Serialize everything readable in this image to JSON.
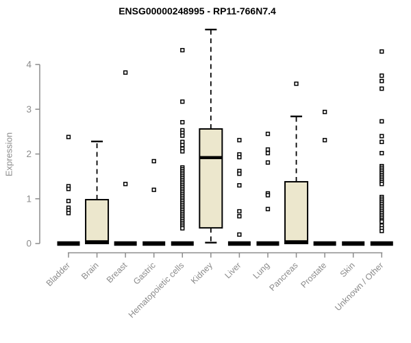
{
  "chart_data": {
    "type": "boxplot",
    "title": "ENSG00000248995 - RP11-766N7.4",
    "ylabel": "Expression",
    "xlabel": "",
    "yticks": [
      0,
      1,
      2,
      3,
      4
    ],
    "ylim": [
      0,
      4.9
    ],
    "grid": false,
    "legend": "none",
    "categories": [
      "Bladder",
      "Brain",
      "Breast",
      "Gastric",
      "Hematopoietic cells",
      "Kidney",
      "Liver",
      "Lung",
      "Pancreas",
      "Prostate",
      "Skin",
      "Unknown / Other"
    ],
    "boxes": [
      {
        "name": "Bladder",
        "low": 0,
        "q1": 0,
        "median": 0,
        "q3": 0,
        "high": 0,
        "outliers": [
          2.38,
          1.28,
          1.22,
          0.95,
          0.8,
          0.74,
          0.68
        ]
      },
      {
        "name": "Brain",
        "low": 0,
        "q1": 0,
        "median": 0.02,
        "q3": 0.98,
        "high": 2.28,
        "outliers": []
      },
      {
        "name": "Breast",
        "low": 0,
        "q1": 0,
        "median": 0,
        "q3": 0,
        "high": 0,
        "outliers": [
          3.82,
          1.33
        ]
      },
      {
        "name": "Gastric",
        "low": 0,
        "q1": 0,
        "median": 0,
        "q3": 0,
        "high": 0,
        "outliers": [
          1.84,
          1.2
        ]
      },
      {
        "name": "Hematopoietic cells",
        "low": 0,
        "q1": 0,
        "median": 0,
        "q3": 0,
        "high": 0,
        "outliers": [
          4.32,
          3.17,
          2.71,
          2.53,
          2.47,
          2.41,
          2.27,
          2.2,
          2.12,
          2.06,
          1.7,
          1.66,
          1.62,
          1.58,
          1.54,
          1.5,
          1.46,
          1.42,
          1.38,
          1.34,
          1.3,
          1.26,
          1.22,
          1.18,
          1.14,
          1.1,
          1.06,
          1.02,
          0.98,
          0.94,
          0.9,
          0.86,
          0.82,
          0.78,
          0.74,
          0.7,
          0.66,
          0.62,
          0.58,
          0.54,
          0.5,
          0.46,
          0.42,
          0.38,
          0.34
        ]
      },
      {
        "name": "Kidney",
        "low": 0.02,
        "q1": 0.35,
        "median": 1.92,
        "q3": 2.56,
        "high": 4.78,
        "outliers": []
      },
      {
        "name": "Liver",
        "low": 0,
        "q1": 0,
        "median": 0,
        "q3": 0,
        "high": 0,
        "outliers": [
          2.31,
          1.99,
          1.93,
          1.62,
          1.56,
          1.3,
          0.72,
          0.61,
          0.2
        ]
      },
      {
        "name": "Lung",
        "low": 0,
        "q1": 0,
        "median": 0,
        "q3": 0,
        "high": 0,
        "outliers": [
          2.45,
          2.1,
          2.02,
          1.81,
          1.12,
          1.08,
          0.77
        ]
      },
      {
        "name": "Pancreas",
        "low": 0,
        "q1": 0,
        "median": 0.02,
        "q3": 1.38,
        "high": 2.84,
        "outliers": [
          3.57
        ]
      },
      {
        "name": "Prostate",
        "low": 0,
        "q1": 0,
        "median": 0,
        "q3": 0,
        "high": 0,
        "outliers": [
          2.94,
          2.31
        ]
      },
      {
        "name": "Skin",
        "low": 0,
        "q1": 0,
        "median": 0,
        "q3": 0,
        "high": 0,
        "outliers": []
      },
      {
        "name": "Unknown / Other",
        "low": 0,
        "q1": 0,
        "median": 0,
        "q3": 0,
        "high": 0,
        "outliers": [
          4.29,
          3.75,
          3.63,
          3.46,
          2.73,
          2.4,
          2.27,
          2.02,
          1.73,
          1.69,
          1.65,
          1.61,
          1.57,
          1.53,
          1.49,
          1.45,
          1.41,
          1.37,
          1.33,
          1.04,
          1.0,
          0.96,
          0.92,
          0.88,
          0.84,
          0.8,
          0.76,
          0.72,
          0.68,
          0.64,
          0.6,
          0.56,
          0.52,
          0.49,
          0.4,
          0.34,
          0.28
        ]
      }
    ],
    "colors": {
      "box_fill": "#ece7cd",
      "box_stroke": "#000000",
      "median": "#000000",
      "outlier_stroke": "#000000",
      "outlier_fill": "#ffffff",
      "axis": "#8b8b8b",
      "tick_label": "#8b8b8b",
      "title": "#000000"
    }
  }
}
